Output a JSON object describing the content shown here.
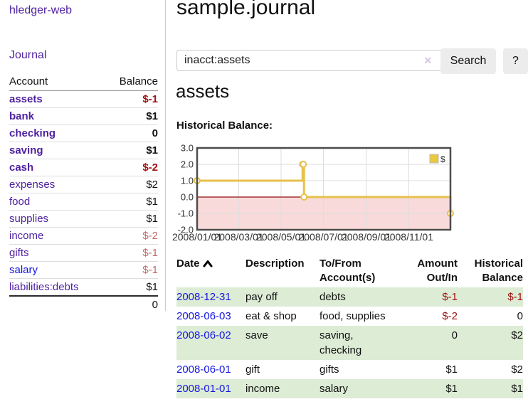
{
  "brand": "hledger-web",
  "nav": {
    "journal": "Journal"
  },
  "sidebar": {
    "columns": {
      "account": "Account",
      "balance": "Balance"
    },
    "accounts": [
      {
        "label": "assets",
        "depth": 1,
        "bold": true,
        "balance": "$-1",
        "bal_class": "neg"
      },
      {
        "label": "bank",
        "depth": 2,
        "bold": true,
        "balance": "$1",
        "bal_class": ""
      },
      {
        "label": "checking",
        "depth": 3,
        "bold": true,
        "balance": "0",
        "bal_class": ""
      },
      {
        "label": "saving",
        "depth": 3,
        "bold": true,
        "balance": "$1",
        "bal_class": ""
      },
      {
        "label": "cash",
        "depth": 2,
        "bold": true,
        "balance": "$-2",
        "bal_class": "neg"
      },
      {
        "label": "expenses",
        "depth": 1,
        "bold": false,
        "balance": "$2",
        "bal_class": ""
      },
      {
        "label": "food",
        "depth": 2,
        "bold": false,
        "balance": "$1",
        "bal_class": ""
      },
      {
        "label": "supplies",
        "depth": 2,
        "bold": false,
        "balance": "$1",
        "bal_class": ""
      },
      {
        "label": "income",
        "depth": 1,
        "bold": false,
        "balance": "$-2",
        "bal_class": "neg-soft"
      },
      {
        "label": "gifts",
        "depth": 2,
        "bold": false,
        "balance": "$-1",
        "bal_class": "neg-soft"
      },
      {
        "label": "salary",
        "depth": 2,
        "bold": false,
        "balance": "$-1",
        "bal_class": "neg-soft",
        "link": "blue"
      },
      {
        "label": "liabilities:debts",
        "depth": 1,
        "bold": false,
        "balance": "$1",
        "bal_class": ""
      }
    ],
    "total": "0"
  },
  "main": {
    "title": "sample.journal",
    "search": {
      "value": "inacct:assets",
      "clear_icon": "×",
      "search_label": "Search",
      "help_label": "?"
    },
    "account_heading": "assets",
    "chart_title": "Historical Balance:"
  },
  "chart_data": {
    "type": "line",
    "style": "step-after",
    "title": "Historical Balance",
    "series": [
      {
        "name": "$",
        "points": [
          [
            "2008-01-01",
            1
          ],
          [
            "2008-06-01",
            2
          ],
          [
            "2008-06-02",
            2
          ],
          [
            "2008-06-03",
            0
          ],
          [
            "2008-12-31",
            -1
          ]
        ]
      }
    ],
    "x_domain": [
      "2008-01-01",
      "2008-12-31"
    ],
    "ylim": [
      -2,
      3
    ],
    "y_ticks": [
      {
        "v": 3,
        "label": "3.0"
      },
      {
        "v": 2,
        "label": "2.0"
      },
      {
        "v": 1,
        "label": "1.0"
      },
      {
        "v": 0,
        "label": "0.0"
      },
      {
        "v": -1,
        "label": "-1.0"
      },
      {
        "v": -2,
        "label": "-2.0"
      }
    ],
    "x_ticks": [
      {
        "date": "2008-01-01",
        "label": "2008/01/01"
      },
      {
        "date": "2008-03-01",
        "label": "2008/03/01"
      },
      {
        "date": "2008-05-01",
        "label": "2008/05/01"
      },
      {
        "date": "2008-07-01",
        "label": "2008/07/01"
      },
      {
        "date": "2008-09-01",
        "label": "2008/09/01"
      },
      {
        "date": "2008-11-01",
        "label": "2008/11/01"
      }
    ],
    "legend": {
      "label": "$",
      "position": "top-right"
    },
    "grid": true,
    "colors": {
      "line": "#e7c14b",
      "marker_fill": "#ffffff",
      "negative_region": "#f9dada",
      "zero_line": "#8f0e0e",
      "legend_swatch": "#eac840",
      "frame": "#4d4d4d",
      "gridline": "#dddddd"
    }
  },
  "register": {
    "headers": {
      "date": "Date",
      "description": "Description",
      "accounts": "To/From\nAccount(s)",
      "amount": "Amount\nOut/In",
      "balance": "Historical\nBalance"
    },
    "rows": [
      {
        "date": "2008-12-31",
        "description": "pay off",
        "accounts": "debts",
        "amount": "$-1",
        "amount_neg": true,
        "balance": "$-1",
        "balance_neg": true,
        "stripe": true
      },
      {
        "date": "2008-06-03",
        "description": "eat & shop",
        "accounts": "food, supplies",
        "amount": "$-2",
        "amount_neg": true,
        "balance": "0",
        "balance_neg": false,
        "stripe": false
      },
      {
        "date": "2008-06-02",
        "description": "save",
        "accounts": "saving,\nchecking",
        "amount": "0",
        "amount_neg": false,
        "balance": "$2",
        "balance_neg": false,
        "stripe": true
      },
      {
        "date": "2008-06-01",
        "description": "gift",
        "accounts": "gifts",
        "amount": "$1",
        "amount_neg": false,
        "balance": "$2",
        "balance_neg": false,
        "stripe": false
      },
      {
        "date": "2008-01-01",
        "description": "income",
        "accounts": "salary",
        "amount": "$1",
        "amount_neg": false,
        "balance": "$1",
        "balance_neg": false,
        "stripe": true
      }
    ]
  }
}
